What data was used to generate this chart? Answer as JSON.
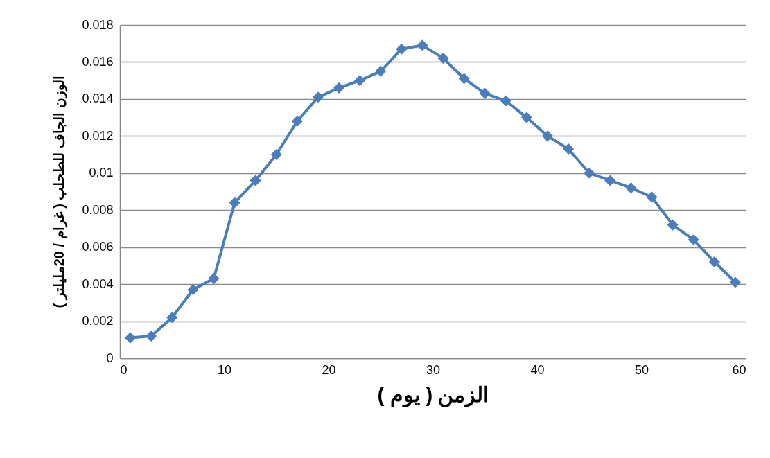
{
  "chart_data": {
    "type": "line",
    "xlabel": "الزمن ( يوم )",
    "ylabel": "الوزن الجاف للطحلب ( غرام / 20مليلتر )",
    "x": [
      1,
      3,
      5,
      7,
      9,
      11,
      13,
      15,
      17,
      19,
      21,
      23,
      25,
      27,
      29,
      31,
      33,
      35,
      37,
      39,
      41,
      43,
      45,
      47,
      49,
      51,
      53,
      55,
      57,
      59
    ],
    "series": [
      {
        "color": "#4a7ebb",
        "values": [
          0.0011,
          0.0012,
          0.0022,
          0.0037,
          0.0043,
          0.0084,
          0.0096,
          0.011,
          0.0128,
          0.0141,
          0.0146,
          0.015,
          0.0155,
          0.0167,
          0.0169,
          0.0162,
          0.0151,
          0.0143,
          0.0139,
          0.013,
          0.012,
          0.0113,
          0.01,
          0.0096,
          0.0092,
          0.0087,
          0.0072,
          0.0064,
          0.0052,
          0.0041
        ]
      }
    ],
    "xlim": [
      0,
      60
    ],
    "xticks": [
      0,
      10,
      20,
      30,
      40,
      50,
      60
    ],
    "ylim": [
      0,
      0.018
    ],
    "yticks": [
      0,
      0.002,
      0.004,
      0.006,
      0.008,
      0.01,
      0.012,
      0.014,
      0.016,
      0.018
    ],
    "grid": "y",
    "marker": "diamond",
    "line_style": "solid"
  }
}
